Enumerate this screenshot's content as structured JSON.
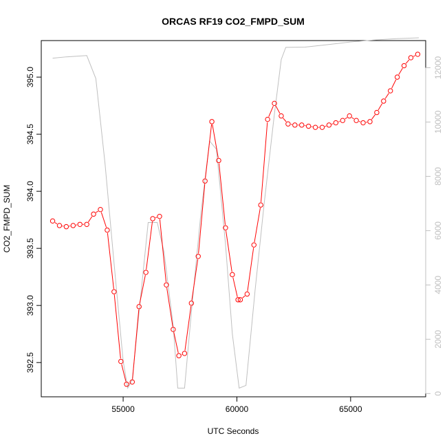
{
  "chart_data": {
    "type": "line",
    "title": "ORCAS RF19 CO2_FMPD_SUM",
    "xlabel": "UTC Seconds",
    "ylabel": "CO2_FMPD_SUM",
    "xlim": [
      51400,
      68300
    ],
    "ylim": [
      392.2,
      395.32
    ],
    "y2lim": [
      -120,
      13000
    ],
    "x_ticks": [
      55000,
      60000,
      65000
    ],
    "x_tick_labels": [
      "55000",
      "60000",
      "65000"
    ],
    "y_ticks": [
      392.5,
      393.0,
      393.5,
      394.0,
      394.5,
      395.0
    ],
    "y_tick_labels": [
      "392.5",
      "393.0",
      "393.5",
      "394.0",
      "394.5",
      "395.0"
    ],
    "y2_ticks": [
      0,
      2000,
      4000,
      6000,
      8000,
      10000,
      12000
    ],
    "y2_tick_labels": [
      "0",
      "2000",
      "4000",
      "6000",
      "8000",
      "10000",
      "12000"
    ],
    "grid": false,
    "legend": "none",
    "series": [
      {
        "axis": "left",
        "color": "#ff0000",
        "marker": "open-circle",
        "points": [
          [
            51900,
            393.74
          ],
          [
            52200,
            393.7
          ],
          [
            52500,
            393.69
          ],
          [
            52800,
            393.7
          ],
          [
            53100,
            393.71
          ],
          [
            53400,
            393.71
          ],
          [
            53700,
            393.8
          ],
          [
            54000,
            393.84
          ],
          [
            54300,
            393.66
          ],
          [
            54600,
            393.12
          ],
          [
            54900,
            392.51
          ],
          [
            55150,
            392.31
          ],
          [
            55400,
            392.33
          ],
          [
            55700,
            392.99
          ],
          [
            56000,
            393.29
          ],
          [
            56300,
            393.76
          ],
          [
            56600,
            393.78
          ],
          [
            56900,
            393.18
          ],
          [
            57200,
            392.79
          ],
          [
            57450,
            392.56
          ],
          [
            57700,
            392.58
          ],
          [
            58000,
            393.02
          ],
          [
            58300,
            393.43
          ],
          [
            58600,
            394.09
          ],
          [
            58900,
            394.61
          ],
          [
            59200,
            394.27
          ],
          [
            59500,
            393.68
          ],
          [
            59800,
            393.27
          ],
          [
            60050,
            393.05
          ],
          [
            60150,
            393.05
          ],
          [
            60450,
            393.1
          ],
          [
            60750,
            393.53
          ],
          [
            61050,
            393.88
          ],
          [
            61350,
            394.63
          ],
          [
            61650,
            394.77
          ],
          [
            61950,
            394.66
          ],
          [
            62250,
            394.59
          ],
          [
            62550,
            394.58
          ],
          [
            62850,
            394.58
          ],
          [
            63150,
            394.57
          ],
          [
            63450,
            394.56
          ],
          [
            63750,
            394.56
          ],
          [
            64050,
            394.58
          ],
          [
            64350,
            394.6
          ],
          [
            64650,
            394.62
          ],
          [
            64950,
            394.66
          ],
          [
            65250,
            394.62
          ],
          [
            65550,
            394.6
          ],
          [
            65850,
            394.61
          ],
          [
            66150,
            394.69
          ],
          [
            66450,
            394.79
          ],
          [
            66750,
            394.88
          ],
          [
            67050,
            395.0
          ],
          [
            67350,
            395.1
          ],
          [
            67650,
            395.17
          ],
          [
            67950,
            395.2
          ]
        ]
      },
      {
        "axis": "right",
        "color": "#bfbfbf",
        "marker": "none",
        "points": [
          [
            51900,
            12350
          ],
          [
            52500,
            12400
          ],
          [
            53400,
            12450
          ],
          [
            53800,
            11600
          ],
          [
            54200,
            8500
          ],
          [
            54600,
            4800
          ],
          [
            55000,
            1200
          ],
          [
            55200,
            200
          ],
          [
            55400,
            500
          ],
          [
            55700,
            3000
          ],
          [
            56100,
            6300
          ],
          [
            56500,
            6300
          ],
          [
            56800,
            5200
          ],
          [
            57200,
            2500
          ],
          [
            57400,
            200
          ],
          [
            57700,
            200
          ],
          [
            58000,
            3000
          ],
          [
            58400,
            6500
          ],
          [
            58800,
            9300
          ],
          [
            59100,
            9000
          ],
          [
            59500,
            5500
          ],
          [
            59800,
            2200
          ],
          [
            60100,
            200
          ],
          [
            60400,
            300
          ],
          [
            60800,
            3800
          ],
          [
            61200,
            7000
          ],
          [
            61650,
            10300
          ],
          [
            61950,
            12300
          ],
          [
            62150,
            12750
          ],
          [
            63000,
            12760
          ],
          [
            64000,
            12850
          ],
          [
            65000,
            12950
          ],
          [
            66000,
            13020
          ],
          [
            67000,
            13070
          ],
          [
            68000,
            13100
          ]
        ]
      }
    ]
  }
}
